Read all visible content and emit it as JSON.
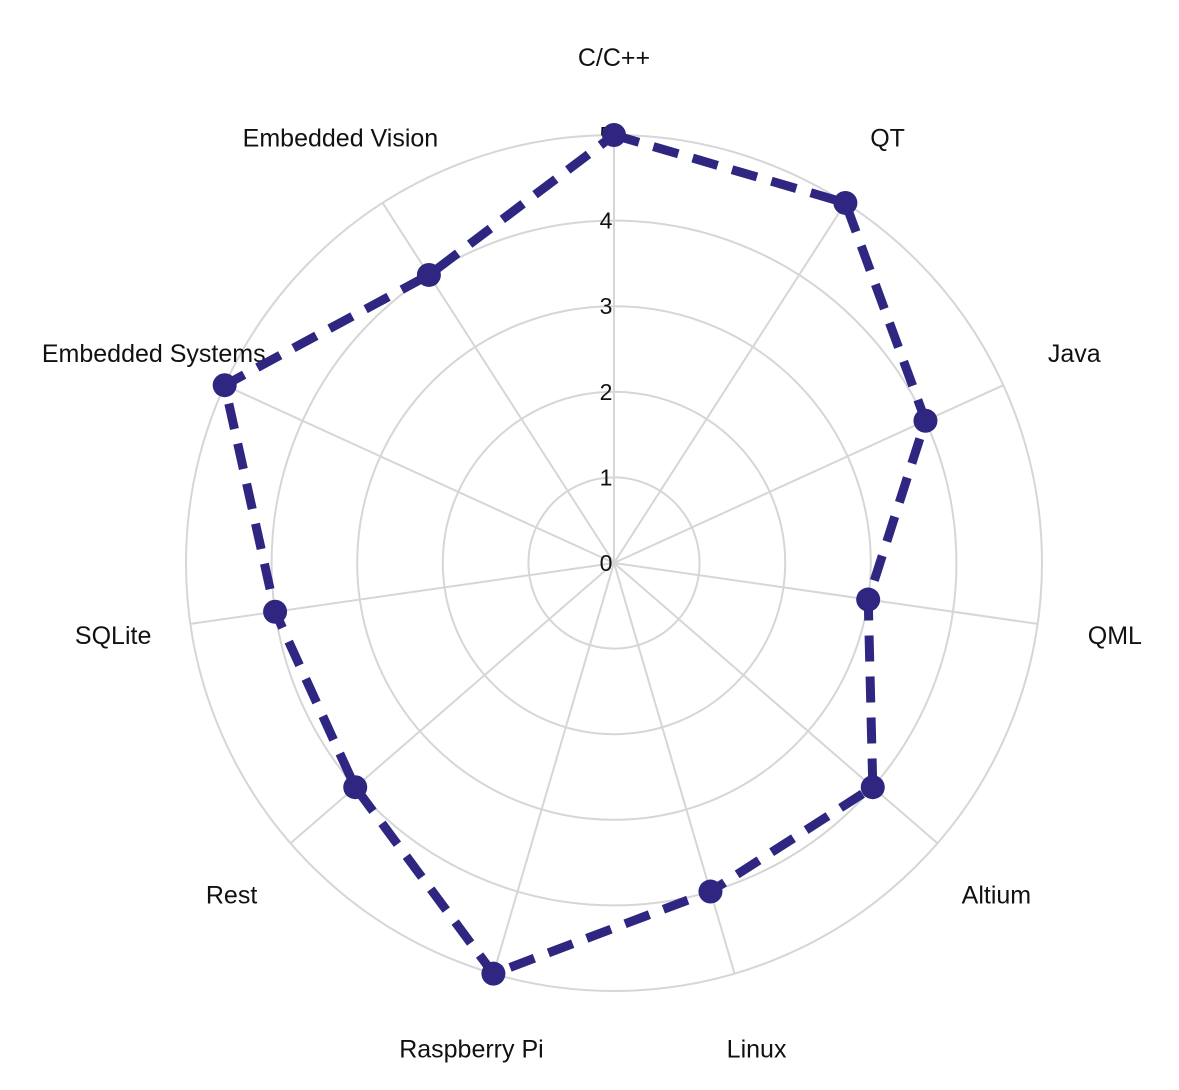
{
  "chart_data": {
    "type": "radar",
    "title": "",
    "categories": [
      "C/C++",
      "QT",
      "Java",
      "QML",
      "Altium",
      "Linux",
      "Raspberry Pi",
      "Rest",
      "SQLite",
      "Embedded Systems",
      "Embedded Vision"
    ],
    "series": [
      {
        "values": [
          5,
          5,
          4,
          3,
          4,
          4,
          5,
          4,
          4,
          5,
          4
        ],
        "color": "#2e2680",
        "line_style": "dashed",
        "marker": "circle"
      }
    ],
    "rlim": [
      0,
      5
    ],
    "ticks": [
      "0",
      "1",
      "2",
      "3",
      "4",
      "5"
    ],
    "grid": true,
    "legend": "none"
  }
}
